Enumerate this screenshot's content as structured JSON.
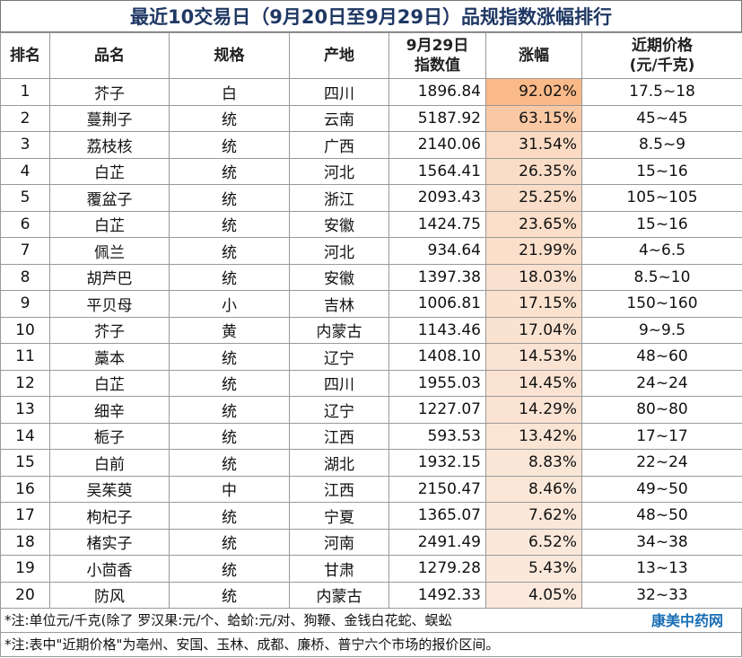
{
  "header": {
    "title": "最近10交易日（9月20日至9月29日）品规指数涨幅排行"
  },
  "table": {
    "columns": [
      [
        "排名"
      ],
      [
        "品名"
      ],
      [
        "规格"
      ],
      [
        "产地"
      ],
      [
        "9月29日",
        "指数值"
      ],
      [
        "涨幅"
      ],
      [
        "近期价格",
        "(元/千克)"
      ]
    ],
    "rows": [
      [
        "1",
        "芥子",
        "白",
        "四川",
        "1896.84",
        "92.02%",
        "17.5~18"
      ],
      [
        "2",
        "蔓荆子",
        "统",
        "云南",
        "5187.92",
        "63.15%",
        "45~45"
      ],
      [
        "3",
        "荔枝核",
        "统",
        "广西",
        "2140.06",
        "31.54%",
        "8.5~9"
      ],
      [
        "4",
        "白芷",
        "统",
        "河北",
        "1564.41",
        "26.35%",
        "15~16"
      ],
      [
        "5",
        "覆盆子",
        "统",
        "浙江",
        "2093.43",
        "25.25%",
        "105~105"
      ],
      [
        "6",
        "白芷",
        "统",
        "安徽",
        "1424.75",
        "23.65%",
        "15~16"
      ],
      [
        "7",
        "佩兰",
        "统",
        "河北",
        "934.64",
        "21.99%",
        "4~6.5"
      ],
      [
        "8",
        "胡芦巴",
        "统",
        "安徽",
        "1397.38",
        "18.03%",
        "8.5~10"
      ],
      [
        "9",
        "平贝母",
        "小",
        "吉林",
        "1006.81",
        "17.15%",
        "150~160"
      ],
      [
        "10",
        "芥子",
        "黄",
        "内蒙古",
        "1143.46",
        "17.04%",
        "9~9.5"
      ],
      [
        "11",
        "藁本",
        "统",
        "辽宁",
        "1408.10",
        "14.53%",
        "48~60"
      ],
      [
        "12",
        "白芷",
        "统",
        "四川",
        "1955.03",
        "14.45%",
        "24~24"
      ],
      [
        "13",
        "细辛",
        "统",
        "辽宁",
        "1227.07",
        "14.29%",
        "80~80"
      ],
      [
        "14",
        "栀子",
        "统",
        "江西",
        "593.53",
        "13.42%",
        "17~17"
      ],
      [
        "15",
        "白前",
        "统",
        "湖北",
        "1932.15",
        "8.83%",
        "22~24"
      ],
      [
        "16",
        "吴茱萸",
        "中",
        "江西",
        "2150.47",
        "8.46%",
        "49~50"
      ],
      [
        "17",
        "枸杞子",
        "统",
        "宁夏",
        "1365.07",
        "7.62%",
        "48~50"
      ],
      [
        "18",
        "楮实子",
        "统",
        "河南",
        "2491.49",
        "6.52%",
        "34~38"
      ],
      [
        "19",
        "小茴香",
        "统",
        "甘肃",
        "1279.28",
        "5.43%",
        "13~13"
      ],
      [
        "20",
        "防风",
        "统",
        "内蒙古",
        "1492.33",
        "4.05%",
        "32~33"
      ]
    ]
  },
  "footnotes": [
    "*注:单位元/千克(除了 罗汉果:元/个、蛤蚧:元/对、狗鞭、金钱白花蛇、蜈蚣",
    "*注:表中\"近期价格\"为亳州、安国、玉林、成都、廉桥、普宁六个市场的报价区间。"
  ],
  "logo": "康美中药网"
}
